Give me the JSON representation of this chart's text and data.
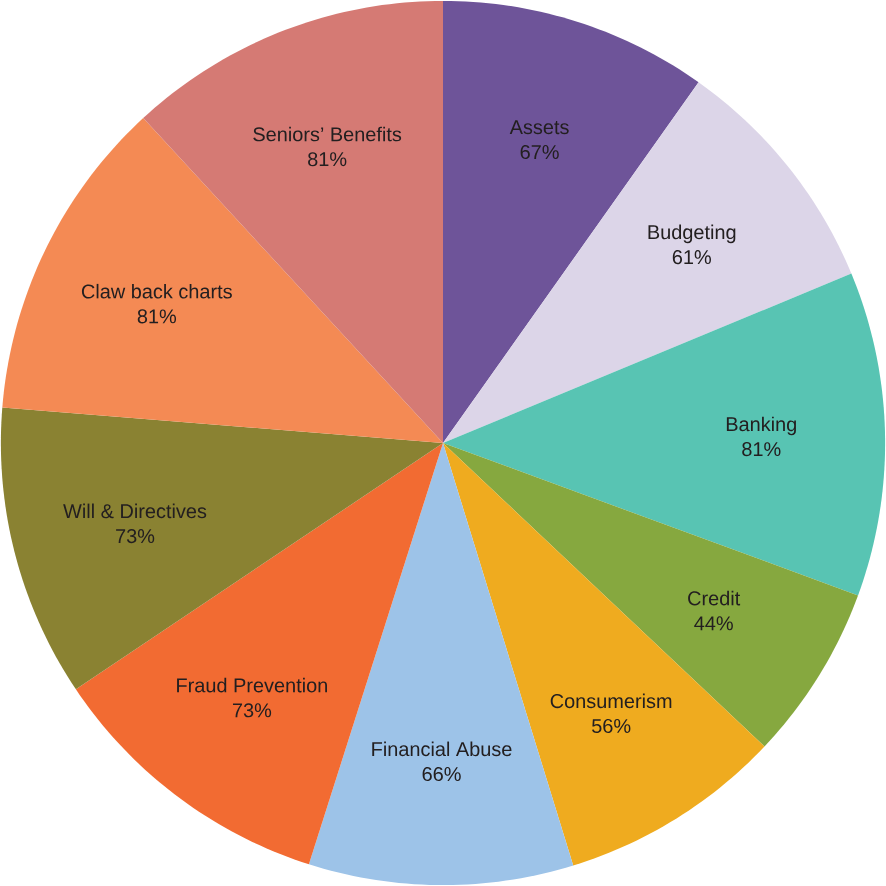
{
  "chart_data": {
    "type": "pie",
    "categories": [
      "Assets",
      "Budgeting",
      "Banking",
      "Credit",
      "Consumerism",
      "Financial Abuse",
      "Fraud Prevention",
      "Will & Directives",
      "Claw back charts",
      "Seniors’ Benefits"
    ],
    "values": [
      67,
      61,
      81,
      44,
      56,
      66,
      73,
      73,
      81,
      81
    ],
    "value_labels": [
      "67%",
      "61%",
      "81%",
      "44%",
      "56%",
      "66%",
      "73%",
      "73%",
      "81%",
      "81%"
    ],
    "colors": [
      "#6e5499",
      "#dcd5e8",
      "#58c4b3",
      "#86a83f",
      "#efab1f",
      "#9dc3e8",
      "#f26b32",
      "#8a8232",
      "#f48a54",
      "#d57a74"
    ]
  }
}
